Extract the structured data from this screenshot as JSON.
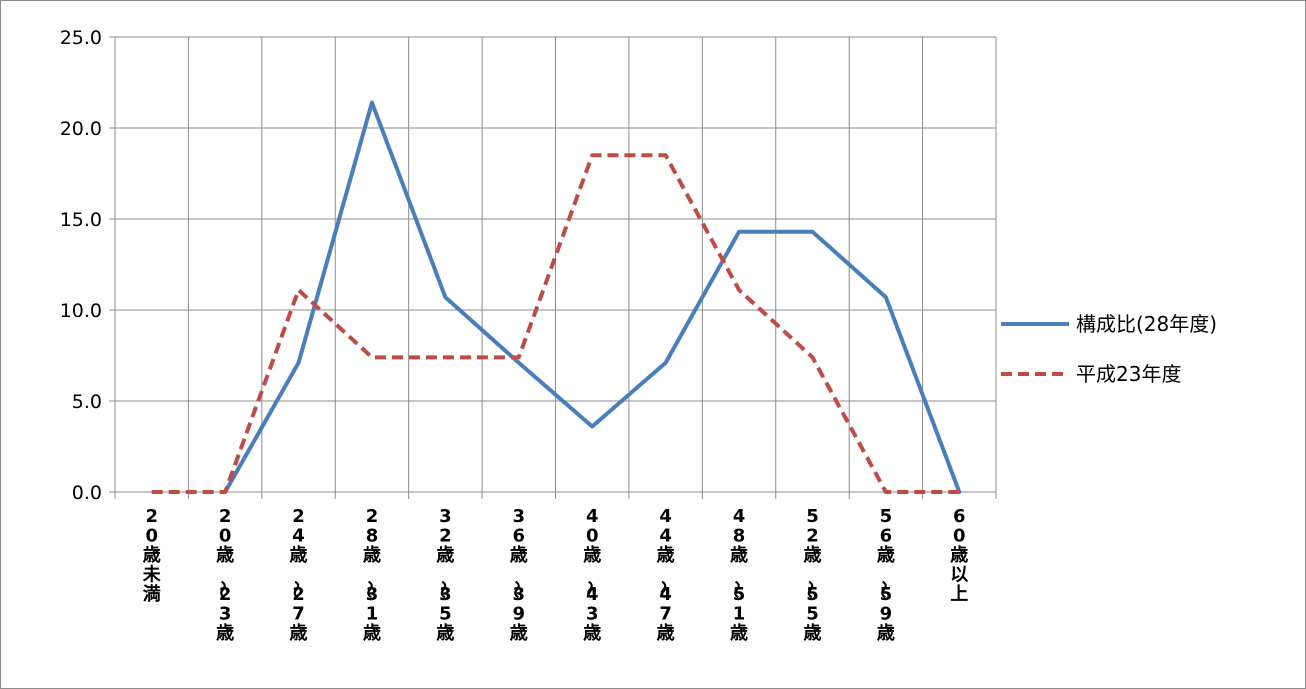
{
  "chart_data": {
    "type": "line",
    "categories": [
      "20歳未満",
      "20歳〜23歳",
      "24歳〜27歳",
      "28歳〜31歳",
      "32歳〜35歳",
      "36歳〜39歳",
      "40歳〜43歳",
      "44歳〜47歳",
      "48歳〜51歳",
      "52歳〜55歳",
      "56歳〜59歳",
      "60歳以上"
    ],
    "series": [
      {
        "name": "構成比(28年度)",
        "values": [
          null,
          0.0,
          7.1,
          21.4,
          10.7,
          7.1,
          3.6,
          7.1,
          14.3,
          14.3,
          10.7,
          0.0
        ],
        "color": "#4a7ebb",
        "dash": "solid"
      },
      {
        "name": "平成23年度",
        "values": [
          0.0,
          0.0,
          11.1,
          7.4,
          7.4,
          7.4,
          18.5,
          18.5,
          11.1,
          7.4,
          0.0,
          0.0
        ],
        "color": "#be4b48",
        "dash": "dashed"
      }
    ],
    "yticks": [
      "25.0",
      "20.0",
      "15.0",
      "10.0",
      "5.0",
      "0.0"
    ],
    "ylim": [
      0,
      25
    ],
    "grid": true,
    "legend_position": "right"
  }
}
